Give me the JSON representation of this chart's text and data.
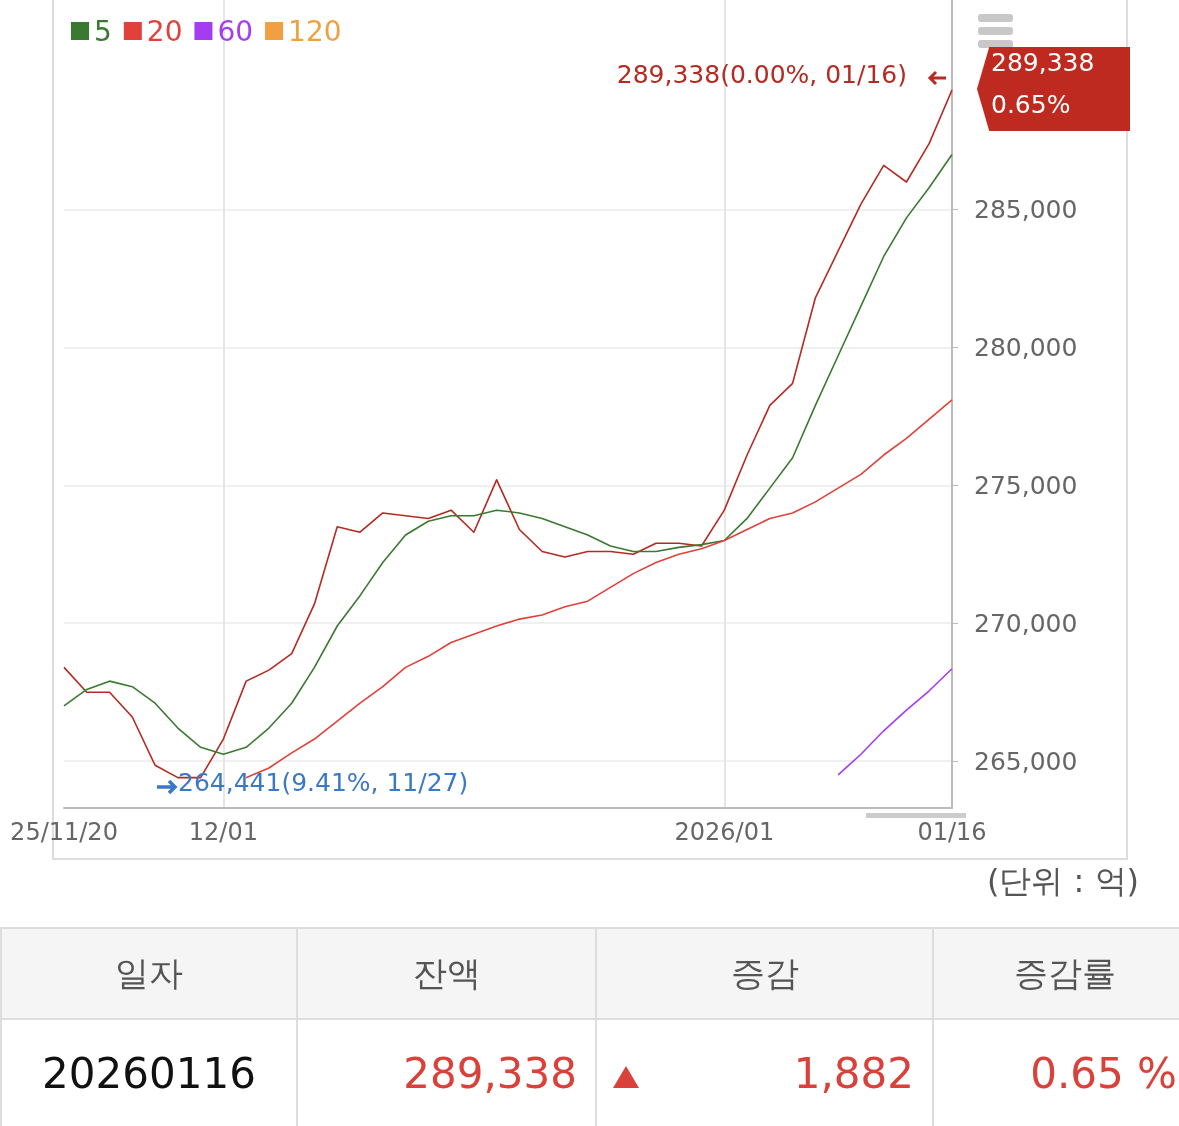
{
  "chart_data": [
    {
      "type": "line",
      "categories": [
        "25/11/20",
        null,
        null,
        null,
        null,
        null,
        null,
        "12/01",
        null,
        null,
        null,
        null,
        null,
        null,
        null,
        null,
        null,
        null,
        null,
        null,
        null,
        null,
        null,
        null,
        null,
        null,
        null,
        null,
        null,
        "2026/01",
        null,
        null,
        null,
        null,
        null,
        null,
        null,
        null,
        null,
        "01/16"
      ],
      "series": [
        {
          "color": "#b52a22",
          "values": [
            268400,
            267500,
            267500,
            266600,
            264850,
            264400,
            264400,
            265800,
            267900,
            268300,
            268900,
            270700,
            273500,
            273300,
            274000,
            273900,
            273800,
            274100,
            273300,
            275200,
            273400,
            272600,
            272400,
            272600,
            272600,
            272500,
            272900,
            272900,
            272800,
            274100,
            276100,
            277900,
            278700,
            281800,
            283500,
            285200,
            286600,
            286000,
            287400,
            289338
          ]
        },
        {
          "name": "5",
          "color": "#3a7a30",
          "values": [
            267000,
            267600,
            267900,
            267700,
            267100,
            266200,
            265500,
            265250,
            265500,
            266200,
            267100,
            268400,
            269900,
            271000,
            272200,
            273200,
            273700,
            273900,
            273900,
            274100,
            274000,
            273800,
            273500,
            273200,
            272800,
            272600,
            272600,
            272750,
            272850,
            273000,
            273800,
            274900,
            276000,
            277900,
            279700,
            281500,
            283300,
            284700,
            285800,
            287000
          ]
        },
        {
          "name": "20",
          "color": "#e0413a",
          "values": [
            null,
            null,
            null,
            null,
            null,
            null,
            null,
            null,
            264400,
            264750,
            265300,
            265800,
            266450,
            267100,
            267700,
            268400,
            268800,
            269300,
            269600,
            269900,
            270150,
            270300,
            270600,
            270800,
            271300,
            271800,
            272200,
            272500,
            272700,
            273000,
            273400,
            273800,
            274000,
            274400,
            274900,
            275400,
            276100,
            276700,
            277400,
            278100
          ]
        },
        {
          "name": "60",
          "color": "#a63cf0",
          "values": [
            null,
            null,
            null,
            null,
            null,
            null,
            null,
            null,
            null,
            null,
            null,
            null,
            null,
            null,
            null,
            null,
            null,
            null,
            null,
            null,
            null,
            null,
            null,
            null,
            null,
            null,
            null,
            null,
            null,
            null,
            null,
            null,
            null,
            null,
            264500,
            265250,
            266100,
            266850,
            267550,
            268350
          ]
        },
        {
          "name": "120",
          "color": "#f0a040",
          "values": [
            null,
            null,
            null,
            null,
            null,
            null,
            null,
            null,
            null,
            null,
            null,
            null,
            null,
            null,
            null,
            null,
            null,
            null,
            null,
            null,
            null,
            null,
            null,
            null,
            null,
            null,
            null,
            null,
            null,
            null,
            null,
            null,
            null,
            null,
            null,
            null,
            null,
            null,
            null,
            null
          ]
        }
      ],
      "ylim": [
        263300,
        292600
      ],
      "yticks": [
        {
          "value": 265000,
          "label": "265,000"
        },
        {
          "value": 270000,
          "label": "270,000"
        },
        {
          "value": 275000,
          "label": "275,000"
        },
        {
          "value": 280000,
          "label": "280,000"
        },
        {
          "value": 285000,
          "label": "285,000"
        }
      ],
      "grid": true,
      "legend": "top left",
      "marker": "none",
      "line_style": "solid",
      "annotations": [
        {
          "text": "289,338(0.00%, 01/16)",
          "x": "01/16",
          "y": 289338
        },
        "264,441(9.41%, 11/27)",
        "289,338",
        "0.65%",
        "(단위 : 억)"
      ]
    },
    {
      "type": "other",
      "categories": [
        "일자",
        "잔액",
        "증감",
        "증감률"
      ],
      "annotations": [
        "20260116",
        "289,338",
        "1,882",
        "0.65 %"
      ]
    }
  ]
}
